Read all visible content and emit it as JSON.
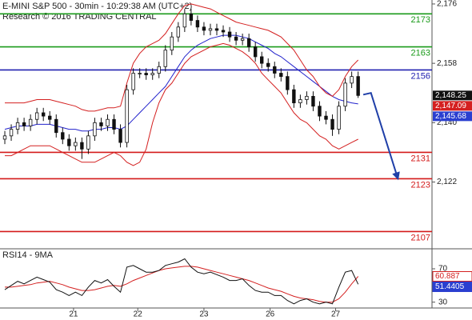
{
  "chart_data": {
    "type": "candlestick",
    "title": "E-MINI S&P 500 - 30min - 10:29:38 AM (UTC+2)",
    "subtitle": "Research © 2016 TRADING CENTRAL",
    "xlim": [
      -0.75,
      66.5
    ],
    "xticks": [
      {
        "value": 10.7,
        "label": "21"
      },
      {
        "value": 20.7,
        "label": "22"
      },
      {
        "value": 31,
        "label": "23"
      },
      {
        "value": 41.3,
        "label": "26"
      },
      {
        "value": 51.5,
        "label": "27"
      }
    ],
    "ylim": [
      2102,
      2177.2
    ],
    "yticks": [
      {
        "value": 2176,
        "label": "2,176"
      },
      {
        "value": 2158,
        "label": "2,158"
      },
      {
        "value": 2140,
        "label": "2,140"
      },
      {
        "value": 2122,
        "label": "2,122"
      }
    ],
    "open": [
      2135,
      2136,
      2138,
      2140,
      2139,
      2141,
      2143,
      2142,
      2141,
      2137,
      2135,
      2133,
      2134,
      2132,
      2136,
      2140,
      2139,
      2141,
      2138,
      2134,
      2150,
      2155,
      2155,
      2154.5,
      2155,
      2157,
      2162,
      2166,
      2169,
      2173,
      2171,
      2169,
      2168,
      2168.5,
      2168,
      2167.5,
      2166,
      2165,
      2165.5,
      2163,
      2160,
      2158,
      2157,
      2155,
      2154,
      2150,
      2146,
      2147,
      2148,
      2145,
      2142,
      2141,
      2138,
      2145,
      2152,
      2154
    ],
    "high": [
      2137.5,
      2139.5,
      2141.5,
      2141.5,
      2142.5,
      2144.5,
      2144.5,
      2143.5,
      2142.5,
      2138.5,
      2136.5,
      2135.5,
      2135.5,
      2137.5,
      2141.5,
      2141.5,
      2142.5,
      2142.5,
      2139.5,
      2151.5,
      2156.5,
      2156.5,
      2156.5,
      2156.5,
      2158.5,
      2163.5,
      2167.5,
      2170.5,
      2174.5,
      2174.5,
      2172.5,
      2170.5,
      2170,
      2170,
      2169.5,
      2169,
      2167.5,
      2167,
      2167,
      2164.5,
      2161.5,
      2159.5,
      2158.5,
      2156.5,
      2155.5,
      2151.5,
      2148.5,
      2149.5,
      2149.5,
      2146.5,
      2143.5,
      2142.5,
      2146.5,
      2153.5,
      2155.5,
      2155.5
    ],
    "low": [
      2133.5,
      2134.5,
      2136.5,
      2137.5,
      2137.5,
      2139.5,
      2140.5,
      2139.5,
      2135.5,
      2133.5,
      2131.5,
      2131.5,
      2129,
      2130.5,
      2134.5,
      2137.5,
      2137.5,
      2136.5,
      2132.5,
      2132.5,
      2148.5,
      2153.5,
      2153,
      2153,
      2153.5,
      2155.5,
      2160.5,
      2164.5,
      2167.5,
      2169.5,
      2167.5,
      2166.5,
      2166.5,
      2166.5,
      2166,
      2164.5,
      2163.5,
      2163.5,
      2161.5,
      2158.5,
      2156.5,
      2155.5,
      2153.5,
      2152.5,
      2148.5,
      2144.5,
      2144.5,
      2145.5,
      2143.5,
      2140.5,
      2139.5,
      2136,
      2136.5,
      2143.5,
      2150.5,
      2147.5
    ],
    "close": [
      2136,
      2138,
      2140,
      2139,
      2141,
      2143,
      2142,
      2141,
      2137,
      2135,
      2133,
      2134,
      2132,
      2136,
      2140,
      2139,
      2141,
      2138,
      2134,
      2150,
      2155,
      2155,
      2154.5,
      2155,
      2157,
      2162,
      2166,
      2169,
      2173,
      2171,
      2169,
      2168,
      2168.5,
      2168,
      2167.5,
      2166,
      2165,
      2165.5,
      2163,
      2160,
      2158,
      2157,
      2155,
      2154,
      2150,
      2146,
      2147,
      2148,
      2145,
      2142,
      2141,
      2138,
      2145,
      2152,
      2154,
      2148.25
    ],
    "series": [
      {
        "color": "#2222cc",
        "values": [
          2138,
          2138.5,
          2139,
          2139,
          2139,
          2139.5,
          2139.5,
          2139.5,
          2139,
          2138.5,
          2138,
          2138,
          2137.5,
          2137.5,
          2138,
          2138,
          2138.5,
          2138.5,
          2138,
          2139,
          2141,
          2143,
          2145,
          2147,
          2149,
          2151,
          2154,
          2157,
          2160,
          2162,
          2163.5,
          2164.5,
          2165.5,
          2166,
          2166.5,
          2166.5,
          2166.5,
          2166,
          2165.5,
          2164.5,
          2163.5,
          2162.5,
          2161,
          2160,
          2158.5,
          2157,
          2155.5,
          2154,
          2152.5,
          2151,
          2149.5,
          2148,
          2147,
          2146.5,
          2146,
          2145.68
        ]
      },
      {
        "color": "#d42020",
        "values": [
          2146,
          2146,
          2146,
          2146,
          2146.5,
          2147,
          2147,
          2147,
          2146.5,
          2146,
          2145.5,
          2145,
          2144,
          2143.5,
          2143.5,
          2144,
          2144.5,
          2144.5,
          2145,
          2152,
          2158,
          2161,
          2163,
          2164,
          2165,
          2167,
          2170,
          2173,
          2175.5,
          2176,
          2175.5,
          2175,
          2174.5,
          2173.5,
          2172.5,
          2171.5,
          2170.5,
          2170,
          2169.5,
          2169,
          2168.5,
          2168,
          2167,
          2166,
          2164,
          2162,
          2159,
          2156,
          2154,
          2151,
          2149,
          2148,
          2150,
          2154,
          2157,
          2159
        ]
      },
      {
        "color": "#d42020",
        "values": [
          2130,
          2130,
          2131,
          2132,
          2133,
          2133,
          2133,
          2133,
          2132,
          2131,
          2130,
          2129,
          2128,
          2128,
          2128,
          2129,
          2130,
          2131,
          2130,
          2128,
          2127,
          2128,
          2132,
          2140,
          2146,
          2150,
          2152,
          2155,
          2158,
          2160,
          2161,
          2162,
          2163,
          2163.5,
          2164,
          2163.5,
          2162.5,
          2161.5,
          2160,
          2158,
          2155,
          2153,
          2151,
          2149,
          2146,
          2143,
          2141,
          2140,
          2138,
          2136,
          2135,
          2133,
          2132,
          2133,
          2134,
          2135
        ]
      }
    ],
    "levels": [
      {
        "value": 2173,
        "color": "#1a9a1a"
      },
      {
        "value": 2163,
        "color": "#1a9a1a"
      },
      {
        "value": 2156,
        "color": "#2020b0"
      },
      {
        "value": 2131,
        "color": "#d41a1a"
      },
      {
        "value": 2123,
        "color": "#d41a1a"
      },
      {
        "value": 2107,
        "color": "#d41a1a"
      }
    ],
    "forecast": {
      "color": "#1f3fa8",
      "x": [
        55.8,
        57,
        61.2
      ],
      "values": [
        2148.5,
        2149,
        2123
      ]
    },
    "price_tags": [
      {
        "value": 2148.25,
        "label": "2,148.25",
        "color": "#111111"
      },
      {
        "value": 2147.09,
        "label": "2,147.09",
        "color": "#d42020"
      },
      {
        "value": 2145.68,
        "label": "2,145.68",
        "color": "#2a3fd0"
      }
    ],
    "rsi": {
      "label": "RSI14 - 9MA",
      "ylim": [
        23,
        93
      ],
      "yticks": [
        70,
        30
      ],
      "values": [
        45,
        50,
        55,
        52,
        56,
        60,
        57,
        54,
        45,
        42,
        38,
        42,
        38,
        48,
        56,
        53,
        57,
        49,
        42,
        72,
        74,
        70,
        66,
        66,
        68,
        74,
        76,
        78,
        82,
        72,
        66,
        64,
        66,
        63,
        60,
        56,
        56,
        58,
        50,
        44,
        42,
        42,
        38,
        38,
        32,
        28,
        32,
        34,
        30,
        28,
        30,
        28,
        48,
        66,
        68,
        51.4405
      ],
      "color": "#111111",
      "ma": [
        48,
        48,
        49,
        50,
        51,
        53,
        54,
        55,
        53,
        51,
        48,
        46,
        44,
        44,
        45,
        47,
        49,
        50,
        49,
        52,
        56,
        59,
        62,
        65,
        68,
        70,
        71,
        72,
        73,
        73,
        72,
        70,
        68,
        66,
        64,
        62,
        60,
        58,
        56,
        53,
        50,
        47,
        45,
        43,
        40,
        37,
        35,
        34,
        33,
        31,
        30,
        30,
        34,
        42,
        52,
        60.887
      ],
      "ma_color": "#d42020",
      "tags": [
        {
          "value": 60.887,
          "color": "#d42020"
        },
        {
          "value": 51.4405,
          "color": "#2a3fd0"
        }
      ]
    }
  }
}
